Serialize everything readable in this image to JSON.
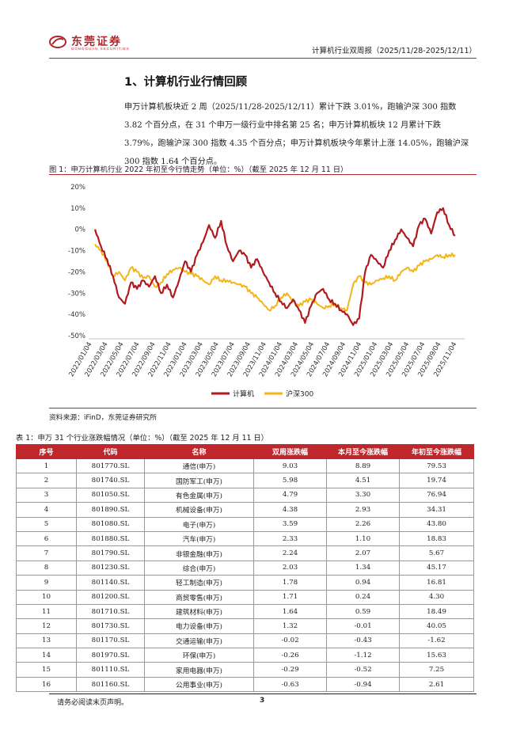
{
  "header": {
    "logo_cn": "东莞证券",
    "logo_en": "DONGGUAN SECURITIES",
    "report_title": "计算机行业双周报（2025/11/28-2025/12/11）",
    "brand_color": "#b0262d"
  },
  "section": {
    "title": "1、计算机行业行情回顾",
    "paragraph": "申万计算机板块近 2 周（2025/11/28-2025/12/11）累计下跌 3.01%，跑输沪深 300 指数 3.82 个百分点，在 31 个申万一级行业中排名第 25 名；申万计算机板块 12 月累计下跌 3.79%，跑输沪深 300 指数 4.35 个百分点；申万计算机板块今年累计上涨 14.05%，跑输沪深 300 指数 1.64 个百分点。"
  },
  "figure": {
    "caption": "图 1：申万计算机行业 2022 年初至今行情走势（单位：%）（截至 2025 年 12 月 11 日）",
    "source": "资料来源：iFinD，东莞证券研究所"
  },
  "chart_data": {
    "type": "line",
    "ylim": [
      -50,
      20
    ],
    "yticks": [
      "20%",
      "10%",
      "0%",
      "-10%",
      "-20%",
      "-30%",
      "-40%",
      "-50%"
    ],
    "x_ticks": [
      "2022/01/04",
      "2022/03/04",
      "2022/05/04",
      "2022/07/04",
      "2022/09/04",
      "2022/11/04",
      "2023/01/04",
      "2023/03/04",
      "2023/05/04",
      "2023/07/04",
      "2023/09/04",
      "2023/11/04",
      "2024/01/04",
      "2024/03/04",
      "2024/05/04",
      "2024/07/04",
      "2024/09/04",
      "2024/11/04",
      "2025/01/04",
      "2025/03/04",
      "2025/05/04",
      "2025/07/04",
      "2025/09/04",
      "2025/11/04"
    ],
    "series": [
      {
        "name": "计算机",
        "color": "#b11a1f",
        "values": [
          0,
          -8,
          -14,
          -22,
          -32,
          -35,
          -25,
          -28,
          -24,
          -27,
          -22,
          -30,
          -26,
          -32,
          -24,
          -15,
          -20,
          -12,
          -6,
          2,
          -4,
          4,
          -8,
          -15,
          -10,
          -12,
          -18,
          -14,
          -20,
          -25,
          -30,
          -34,
          -37,
          -33,
          -38,
          -44,
          -36,
          -30,
          -28,
          -33,
          -35,
          -38,
          -40,
          -45,
          -42,
          -20,
          -12,
          -15,
          -18,
          -10,
          -5,
          0,
          -4,
          -8,
          2,
          5,
          -2,
          8,
          10,
          2,
          -3
        ]
      },
      {
        "name": "沪深300",
        "color": "#f2b51a",
        "values": [
          -7,
          -10,
          -15,
          -22,
          -20,
          -24,
          -18,
          -20,
          -23,
          -22,
          -27,
          -25,
          -21,
          -19,
          -18,
          -20,
          -21,
          -22,
          -24,
          -26,
          -22,
          -24,
          -24,
          -25,
          -26,
          -27,
          -30,
          -32,
          -35,
          -38,
          -36,
          -32,
          -30,
          -34,
          -36,
          -34,
          -33,
          -35,
          -37,
          -36,
          -35,
          -37,
          -38,
          -26,
          -22,
          -25,
          -26,
          -24,
          -23,
          -22,
          -24,
          -20,
          -18,
          -20,
          -17,
          -15,
          -14,
          -12,
          -13,
          -12,
          -12
        ]
      }
    ]
  },
  "table": {
    "caption": "表 1：申万 31 个行业涨跌幅情况（单位：%）（截至 2025 年 12 月 11 日）",
    "headers": [
      "序号",
      "代码",
      "名称",
      "双周涨跌幅",
      "本月至今涨跌幅",
      "年初至今涨跌幅"
    ],
    "rows": [
      [
        "1",
        "801770.SL",
        "通信(申万)",
        "9.03",
        "8.89",
        "79.53"
      ],
      [
        "2",
        "801740.SL",
        "国防军工(申万)",
        "5.98",
        "4.51",
        "19.74"
      ],
      [
        "3",
        "801050.SL",
        "有色金属(申万)",
        "4.79",
        "3.30",
        "76.94"
      ],
      [
        "4",
        "801890.SL",
        "机械设备(申万)",
        "4.38",
        "2.93",
        "34.31"
      ],
      [
        "5",
        "801080.SL",
        "电子(申万)",
        "3.59",
        "2.26",
        "43.80"
      ],
      [
        "6",
        "801880.SL",
        "汽车(申万)",
        "2.33",
        "1.10",
        "18.83"
      ],
      [
        "7",
        "801790.SL",
        "非银金融(申万)",
        "2.24",
        "2.07",
        "5.67"
      ],
      [
        "8",
        "801230.SL",
        "综合(申万)",
        "2.03",
        "1.34",
        "45.17"
      ],
      [
        "9",
        "801140.SL",
        "轻工制造(申万)",
        "1.78",
        "0.94",
        "16.81"
      ],
      [
        "10",
        "801200.SL",
        "商贸零售(申万)",
        "1.71",
        "0.24",
        "4.30"
      ],
      [
        "11",
        "801710.SL",
        "建筑材料(申万)",
        "1.64",
        "0.59",
        "18.49"
      ],
      [
        "12",
        "801730.SL",
        "电力设备(申万)",
        "1.32",
        "-0.01",
        "40.05"
      ],
      [
        "13",
        "801170.SL",
        "交通运输(申万)",
        "-0.02",
        "-0.43",
        "-1.62"
      ],
      [
        "14",
        "801970.SL",
        "环保(申万)",
        "-0.26",
        "-1.12",
        "15.63"
      ],
      [
        "15",
        "801110.SL",
        "家用电器(申万)",
        "-0.29",
        "-0.52",
        "7.25"
      ],
      [
        "16",
        "801160.SL",
        "公用事业(申万)",
        "-0.63",
        "-0.94",
        "2.61"
      ]
    ]
  },
  "footer": {
    "disclaimer": "请务必阅读末页声明。",
    "page": "3"
  }
}
